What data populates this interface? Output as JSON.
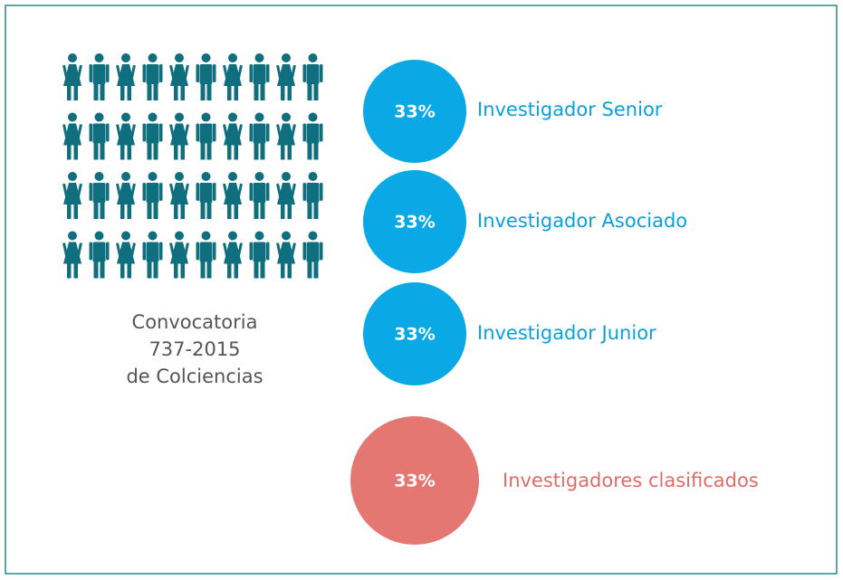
{
  "caption": {
    "lines": [
      "Convocatoria",
      "737-2015",
      "de Colciencias"
    ]
  },
  "items": [
    {
      "percent": "33%",
      "label": "Investigador Senior"
    },
    {
      "percent": "33%",
      "label": "Investigador Asociado"
    },
    {
      "percent": "33%",
      "label": "Investigador Junior"
    },
    {
      "percent": "33%",
      "label": "Investigadores clasificados"
    }
  ]
}
